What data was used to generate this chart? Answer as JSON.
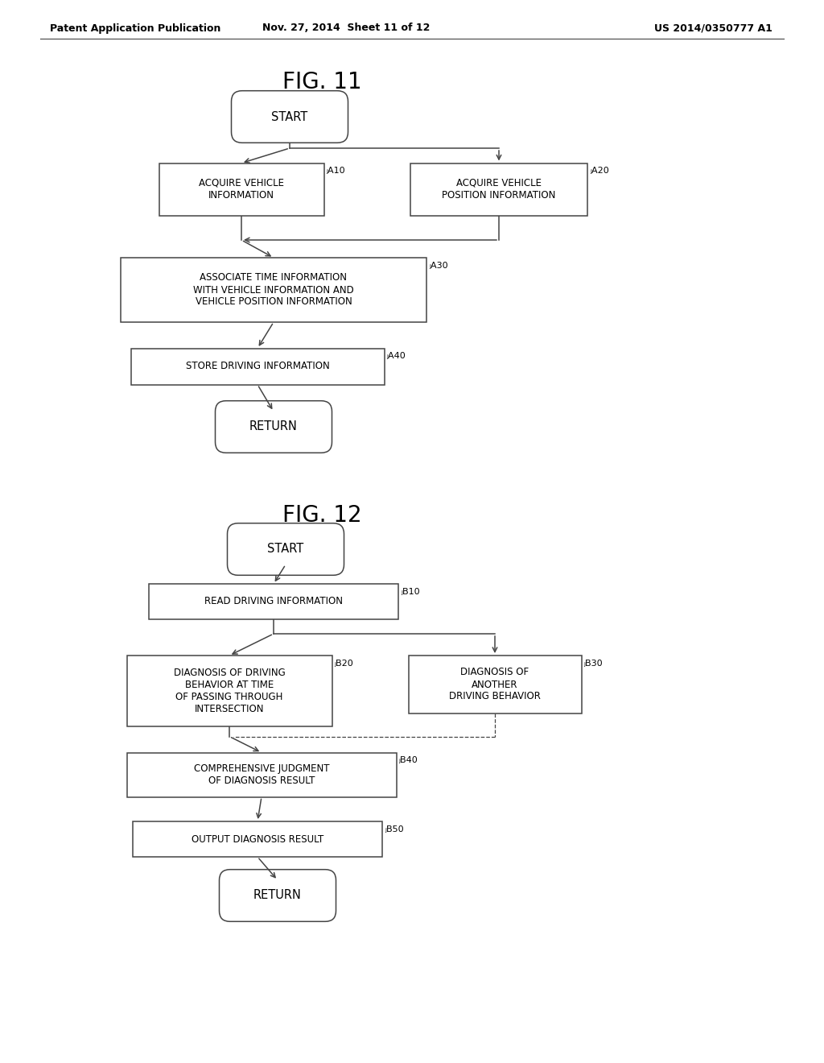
{
  "header_left": "Patent Application Publication",
  "header_mid": "Nov. 27, 2014  Sheet 11 of 12",
  "header_right": "US 2014/0350777 A1",
  "fig11_title": "FIG. 11",
  "fig12_title": "FIG. 12",
  "bg_color": "#ffffff",
  "edge_color": "#444444",
  "text_color": "#000000",
  "arrow_color": "#444444"
}
